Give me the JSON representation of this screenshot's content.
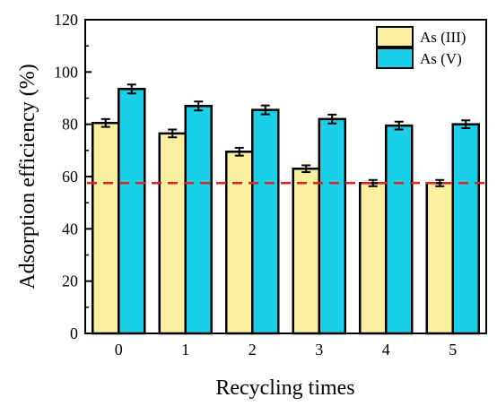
{
  "chart_data": {
    "type": "bar",
    "title": "",
    "xlabel": "Recycling times",
    "ylabel": "Adsorption efficiency (%)",
    "categories": [
      "0",
      "1",
      "2",
      "3",
      "4",
      "5"
    ],
    "ylim": [
      0,
      120
    ],
    "yticks": [
      "0",
      "20",
      "40",
      "60",
      "80",
      "100",
      "120"
    ],
    "series": [
      {
        "name": "As (III)",
        "color": "#faf0a0",
        "values": [
          80.5,
          76.5,
          69.5,
          63.0,
          57.5,
          57.5
        ],
        "errors": [
          1.5,
          1.5,
          1.5,
          1.3,
          1.2,
          1.2
        ]
      },
      {
        "name": "As (V)",
        "color": "#1ad0e8",
        "values": [
          93.5,
          87.0,
          85.5,
          82.0,
          79.5,
          80.0
        ],
        "errors": [
          1.7,
          1.7,
          1.7,
          1.7,
          1.5,
          1.5
        ]
      }
    ],
    "reference_line": {
      "value": 57.5,
      "style": "dashed",
      "color": "#e8201c"
    },
    "legend_position": "top-right",
    "grid": false
  }
}
